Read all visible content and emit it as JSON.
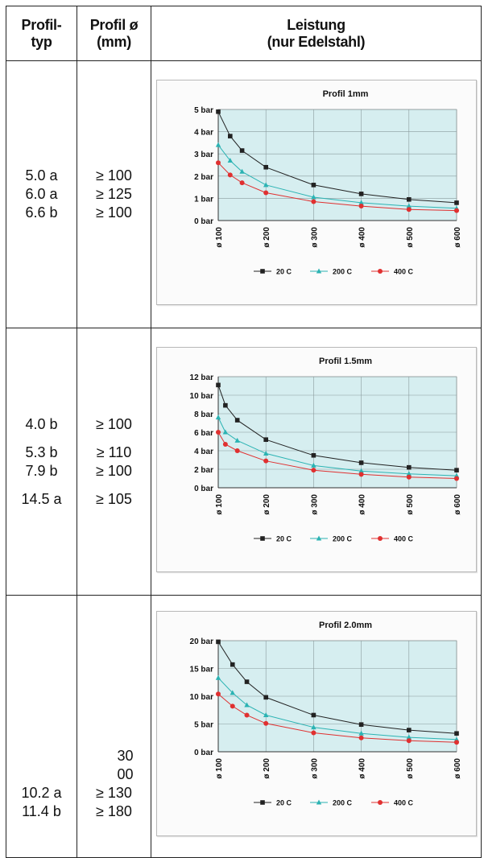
{
  "header": {
    "col1_line1": "Profil-",
    "col1_line2": "typ",
    "col2_line1": "Profil ø",
    "col2_line2": "(mm)",
    "col3_line1": "Leistung",
    "col3_line2": "(nur Edelstahl)"
  },
  "rows": [
    {
      "types": [
        "5.0 a",
        "6.0 a",
        "6.6 b"
      ],
      "diameters": [
        "≥ 100",
        "≥ 125",
        "≥ 100"
      ]
    },
    {
      "types": [
        "4.0 b",
        "",
        "5.3 b",
        "7.9 b",
        "",
        "14.5 a"
      ],
      "diameters": [
        "≥ 100",
        "",
        "≥ 110",
        "≥ 100",
        "",
        "≥ 105"
      ]
    },
    {
      "types": [
        "",
        "",
        "10.2 a",
        "11.4 b"
      ],
      "diameters": [
        "30",
        "00",
        "≥ 130",
        "≥ 180"
      ]
    }
  ],
  "colors": {
    "plot_bg": "#d6eef0",
    "grid": "#8a9a9c",
    "s20": "#222222",
    "s200": "#2bb3b3",
    "s400": "#e03030"
  },
  "chart_data": [
    {
      "type": "line",
      "title": "Profil 1mm",
      "x": [
        "ø 100",
        "ø 200",
        "ø 300",
        "ø 400",
        "ø 500",
        "ø 600"
      ],
      "xvals": [
        100,
        200,
        300,
        400,
        500,
        600
      ],
      "ylim": [
        0,
        5
      ],
      "yticks": [
        0,
        1,
        2,
        3,
        4,
        5
      ],
      "ytick_labels": [
        "0 bar",
        "1 bar",
        "2 bar",
        "3 bar",
        "4 bar",
        "5 bar"
      ],
      "grid": true,
      "legend_position": "bottom",
      "series": [
        {
          "name": "20 C",
          "marker": "square",
          "x": [
            100,
            125,
            150,
            200,
            300,
            400,
            500,
            600
          ],
          "values": [
            4.9,
            3.8,
            3.15,
            2.4,
            1.6,
            1.2,
            0.95,
            0.8
          ]
        },
        {
          "name": "200 C",
          "marker": "triangle",
          "x": [
            100,
            125,
            150,
            200,
            300,
            400,
            500,
            600
          ],
          "values": [
            3.4,
            2.7,
            2.2,
            1.6,
            1.05,
            0.8,
            0.65,
            0.55
          ]
        },
        {
          "name": "400 C",
          "marker": "circle",
          "x": [
            100,
            125,
            150,
            200,
            300,
            400,
            500,
            600
          ],
          "values": [
            2.6,
            2.05,
            1.7,
            1.25,
            0.85,
            0.65,
            0.5,
            0.45
          ]
        }
      ]
    },
    {
      "type": "line",
      "title": "Profil 1.5mm",
      "x": [
        "ø 100",
        "ø 200",
        "ø 300",
        "ø 400",
        "ø 500",
        "ø 600"
      ],
      "xvals": [
        100,
        200,
        300,
        400,
        500,
        600
      ],
      "ylim": [
        0,
        12
      ],
      "yticks": [
        0,
        2,
        4,
        6,
        8,
        10,
        12
      ],
      "ytick_labels": [
        "0 bar",
        "2 bar",
        "4 bar",
        "6 bar",
        "8 bar",
        "10 bar",
        "12 bar"
      ],
      "grid": true,
      "legend_position": "bottom",
      "series": [
        {
          "name": "20 C",
          "marker": "square",
          "x": [
            100,
            115,
            140,
            200,
            300,
            400,
            500,
            600
          ],
          "values": [
            11.1,
            8.9,
            7.3,
            5.2,
            3.5,
            2.7,
            2.2,
            1.9
          ]
        },
        {
          "name": "200 C",
          "marker": "triangle",
          "x": [
            100,
            115,
            140,
            200,
            300,
            400,
            500,
            600
          ],
          "values": [
            7.6,
            6.0,
            5.1,
            3.7,
            2.4,
            1.8,
            1.5,
            1.3
          ]
        },
        {
          "name": "400 C",
          "marker": "circle",
          "x": [
            100,
            115,
            140,
            200,
            300,
            400,
            500,
            600
          ],
          "values": [
            6.0,
            4.7,
            4.0,
            2.9,
            1.9,
            1.45,
            1.15,
            1.0
          ]
        }
      ]
    },
    {
      "type": "line",
      "title": "Profil 2.0mm",
      "x": [
        "ø 100",
        "ø 200",
        "ø 300",
        "ø 400",
        "ø 500",
        "ø 600"
      ],
      "xvals": [
        100,
        200,
        300,
        400,
        500,
        600
      ],
      "ylim": [
        0,
        20
      ],
      "yticks": [
        0,
        5,
        10,
        15,
        20
      ],
      "ytick_labels": [
        "0 bar",
        "5 bar",
        "10 bar",
        "15 bar",
        "20 bar"
      ],
      "grid": true,
      "legend_position": "bottom",
      "series": [
        {
          "name": "20 C",
          "marker": "square",
          "x": [
            100,
            130,
            160,
            200,
            300,
            400,
            500,
            600
          ],
          "values": [
            19.8,
            15.7,
            12.6,
            9.8,
            6.6,
            4.9,
            3.9,
            3.3
          ]
        },
        {
          "name": "200 C",
          "marker": "triangle",
          "x": [
            100,
            130,
            160,
            200,
            300,
            400,
            500,
            600
          ],
          "values": [
            13.3,
            10.6,
            8.4,
            6.6,
            4.4,
            3.3,
            2.6,
            2.2
          ]
        },
        {
          "name": "400 C",
          "marker": "circle",
          "x": [
            100,
            130,
            160,
            200,
            300,
            400,
            500,
            600
          ],
          "values": [
            10.4,
            8.2,
            6.6,
            5.1,
            3.4,
            2.5,
            2.0,
            1.7
          ]
        }
      ]
    }
  ]
}
